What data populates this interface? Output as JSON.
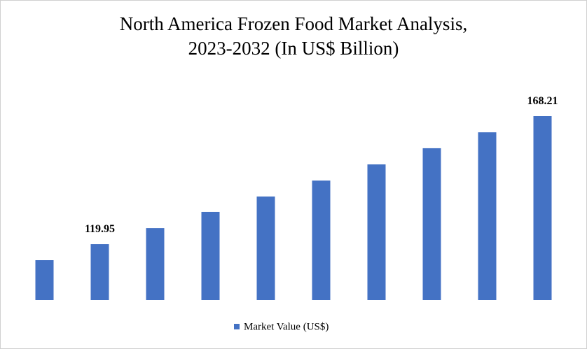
{
  "chart_data": {
    "type": "bar",
    "title": "North America Frozen Food Market Analysis,\n2023-2032 (In US$ Billion)",
    "categories": [
      null,
      null,
      null,
      null,
      null,
      null,
      null,
      null,
      null,
      null
    ],
    "series": [
      {
        "name": "Market Value (US$)",
        "color": "#4472c4",
        "values": [
          113.9,
          119.95,
          126.0,
          132.1,
          137.9,
          143.9,
          150.0,
          156.1,
          162.1,
          168.21
        ]
      }
    ],
    "legend": "bottom"
  }
}
